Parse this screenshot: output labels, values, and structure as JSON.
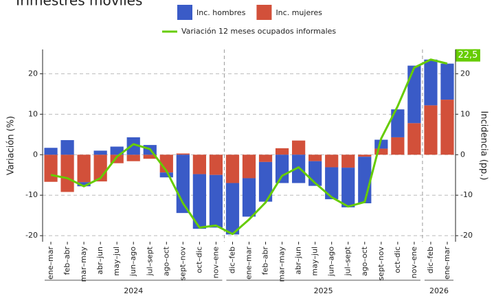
{
  "chart_data": {
    "type": "bar",
    "title": "Trimestres móviles",
    "y_label": "Variación (%)",
    "y2_label": "Incidencia (pp.)",
    "groups": [
      {
        "label": "2024",
        "categories": [
          "ene–mar",
          "feb–abr",
          "mar–may",
          "abr–jun",
          "may–jul",
          "jun–ago",
          "jul–sept",
          "ago–oct",
          "sept–nov",
          "oct–dic",
          "nov–ene"
        ]
      },
      {
        "label": "2025",
        "categories": [
          "dic–feb",
          "ene–mar",
          "feb–abr",
          "mar–may",
          "abr–jun",
          "may–jul",
          "jun–ago",
          "jul–sept",
          "ago–oct",
          "sept–nov",
          "oct–dic",
          "nov–ene"
        ]
      },
      {
        "label": "2026",
        "categories": [
          "dic–feb",
          "ene–mar"
        ]
      }
    ],
    "series": [
      {
        "name": "Inc. mujeres",
        "color": "#d2503a",
        "axis": "y2",
        "values": [
          -6.7,
          -9.2,
          -6.8,
          -6.6,
          -2.1,
          -1.6,
          -1.0,
          -4.4,
          0.3,
          -4.8,
          -5.0,
          -7.0,
          -5.8,
          -1.8,
          1.6,
          3.5,
          -1.6,
          -3.1,
          -3.2,
          -0.5,
          1.5,
          4.3,
          7.8,
          12.2,
          13.6
        ]
      },
      {
        "name": "Inc. hombres",
        "color": "#3a5bc7",
        "axis": "y2",
        "values": [
          1.7,
          3.6,
          -1.0,
          1.0,
          2.0,
          4.3,
          2.4,
          -1.2,
          -14.4,
          -13.5,
          -13.0,
          -12.7,
          -9.5,
          -9.8,
          -7.0,
          -7.0,
          -6.1,
          -7.9,
          -9.8,
          -11.5,
          2.2,
          6.9,
          14.2,
          11.3,
          8.9
        ]
      },
      {
        "name": "Variación 12 meses ocupados informales",
        "color": "#66cc00",
        "type": "line",
        "values": [
          -5.0,
          -5.8,
          -7.8,
          -5.8,
          -0.5,
          2.6,
          1.4,
          -4.0,
          -12.0,
          -18.0,
          -17.5,
          -19.6,
          -16.0,
          -11.8,
          -5.2,
          -3.1,
          -7.0,
          -10.5,
          -12.8,
          -11.7,
          4.0,
          12.0,
          21.5,
          23.5,
          22.5
        ],
        "value_labels": [
          null,
          null,
          null,
          null,
          null,
          null,
          null,
          null,
          null,
          null,
          null,
          null,
          null,
          null,
          null,
          null,
          null,
          null,
          null,
          null,
          null,
          null,
          null,
          null,
          "22,5"
        ]
      }
    ],
    "ylim": [
      -21.5,
      26
    ],
    "yticks": [
      -20,
      -10,
      0,
      10,
      20
    ],
    "y2lim": [
      -21.5,
      26
    ],
    "y2ticks": [
      -20,
      -10,
      0,
      10,
      20
    ],
    "grid": true
  }
}
